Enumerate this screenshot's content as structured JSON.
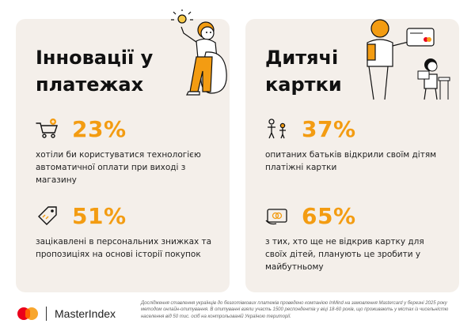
{
  "left_card": {
    "title": "Інновації у платежах",
    "stats": [
      {
        "value": "23%",
        "text": "хотіли би користуватися технологією автоматичної оплати при виході з магазину",
        "icon": "shopping-cart-icon"
      },
      {
        "value": "51%",
        "text": "зацікавлені в персональних знижках та пропозиціях на основі історії покупок",
        "icon": "price-tag-icon"
      }
    ]
  },
  "right_card": {
    "title": "Дитячі картки",
    "stats": [
      {
        "value": "37%",
        "text": "опитаних батьків відкрили своїм дітям платіжні картки",
        "icon": "parent-child-icon"
      },
      {
        "value": "65%",
        "text": "з тих, хто ще не відкрив картку для своїх дітей, планують це зробити у майбутньому",
        "icon": "hand-card-icon"
      }
    ]
  },
  "footer": {
    "brand": "MasterIndex",
    "note": "Дослідження ставлення українців до безготівкових платежів проведено компанією InMind на замовлення Mastercard у березні 2025 року методом онлайн-опитування. В опитуванні взяли участь 1500 респондентів у віці 18-60 років, що проживають у містах із чисельністю населення від 50 тис. осіб на контрольованій Україною території."
  },
  "colors": {
    "accent": "#f39c12",
    "card_bg": "#f4efea",
    "text": "#1a1a1a"
  }
}
